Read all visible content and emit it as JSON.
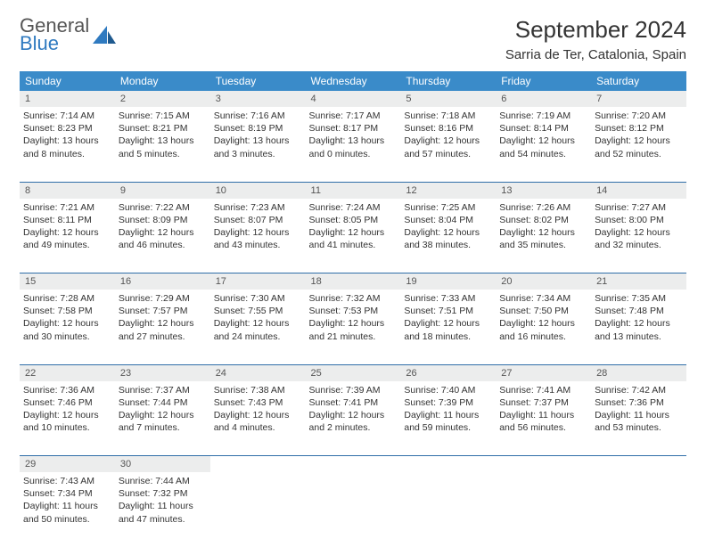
{
  "brand": {
    "word1": "General",
    "word2": "Blue",
    "color_primary": "#2f7ac0",
    "color_text": "#555555"
  },
  "title": "September 2024",
  "location": "Sarria de Ter, Catalonia, Spain",
  "header_bg": "#3a8bc9",
  "header_fg": "#ffffff",
  "daynum_bg": "#eceded",
  "rule_color": "#2f6ea8",
  "weekdays": [
    "Sunday",
    "Monday",
    "Tuesday",
    "Wednesday",
    "Thursday",
    "Friday",
    "Saturday"
  ],
  "weeks": [
    [
      {
        "n": "1",
        "sr": "7:14 AM",
        "ss": "8:23 PM",
        "dl": "13 hours and 8 minutes."
      },
      {
        "n": "2",
        "sr": "7:15 AM",
        "ss": "8:21 PM",
        "dl": "13 hours and 5 minutes."
      },
      {
        "n": "3",
        "sr": "7:16 AM",
        "ss": "8:19 PM",
        "dl": "13 hours and 3 minutes."
      },
      {
        "n": "4",
        "sr": "7:17 AM",
        "ss": "8:17 PM",
        "dl": "13 hours and 0 minutes."
      },
      {
        "n": "5",
        "sr": "7:18 AM",
        "ss": "8:16 PM",
        "dl": "12 hours and 57 minutes."
      },
      {
        "n": "6",
        "sr": "7:19 AM",
        "ss": "8:14 PM",
        "dl": "12 hours and 54 minutes."
      },
      {
        "n": "7",
        "sr": "7:20 AM",
        "ss": "8:12 PM",
        "dl": "12 hours and 52 minutes."
      }
    ],
    [
      {
        "n": "8",
        "sr": "7:21 AM",
        "ss": "8:11 PM",
        "dl": "12 hours and 49 minutes."
      },
      {
        "n": "9",
        "sr": "7:22 AM",
        "ss": "8:09 PM",
        "dl": "12 hours and 46 minutes."
      },
      {
        "n": "10",
        "sr": "7:23 AM",
        "ss": "8:07 PM",
        "dl": "12 hours and 43 minutes."
      },
      {
        "n": "11",
        "sr": "7:24 AM",
        "ss": "8:05 PM",
        "dl": "12 hours and 41 minutes."
      },
      {
        "n": "12",
        "sr": "7:25 AM",
        "ss": "8:04 PM",
        "dl": "12 hours and 38 minutes."
      },
      {
        "n": "13",
        "sr": "7:26 AM",
        "ss": "8:02 PM",
        "dl": "12 hours and 35 minutes."
      },
      {
        "n": "14",
        "sr": "7:27 AM",
        "ss": "8:00 PM",
        "dl": "12 hours and 32 minutes."
      }
    ],
    [
      {
        "n": "15",
        "sr": "7:28 AM",
        "ss": "7:58 PM",
        "dl": "12 hours and 30 minutes."
      },
      {
        "n": "16",
        "sr": "7:29 AM",
        "ss": "7:57 PM",
        "dl": "12 hours and 27 minutes."
      },
      {
        "n": "17",
        "sr": "7:30 AM",
        "ss": "7:55 PM",
        "dl": "12 hours and 24 minutes."
      },
      {
        "n": "18",
        "sr": "7:32 AM",
        "ss": "7:53 PM",
        "dl": "12 hours and 21 minutes."
      },
      {
        "n": "19",
        "sr": "7:33 AM",
        "ss": "7:51 PM",
        "dl": "12 hours and 18 minutes."
      },
      {
        "n": "20",
        "sr": "7:34 AM",
        "ss": "7:50 PM",
        "dl": "12 hours and 16 minutes."
      },
      {
        "n": "21",
        "sr": "7:35 AM",
        "ss": "7:48 PM",
        "dl": "12 hours and 13 minutes."
      }
    ],
    [
      {
        "n": "22",
        "sr": "7:36 AM",
        "ss": "7:46 PM",
        "dl": "12 hours and 10 minutes."
      },
      {
        "n": "23",
        "sr": "7:37 AM",
        "ss": "7:44 PM",
        "dl": "12 hours and 7 minutes."
      },
      {
        "n": "24",
        "sr": "7:38 AM",
        "ss": "7:43 PM",
        "dl": "12 hours and 4 minutes."
      },
      {
        "n": "25",
        "sr": "7:39 AM",
        "ss": "7:41 PM",
        "dl": "12 hours and 2 minutes."
      },
      {
        "n": "26",
        "sr": "7:40 AM",
        "ss": "7:39 PM",
        "dl": "11 hours and 59 minutes."
      },
      {
        "n": "27",
        "sr": "7:41 AM",
        "ss": "7:37 PM",
        "dl": "11 hours and 56 minutes."
      },
      {
        "n": "28",
        "sr": "7:42 AM",
        "ss": "7:36 PM",
        "dl": "11 hours and 53 minutes."
      }
    ],
    [
      {
        "n": "29",
        "sr": "7:43 AM",
        "ss": "7:34 PM",
        "dl": "11 hours and 50 minutes."
      },
      {
        "n": "30",
        "sr": "7:44 AM",
        "ss": "7:32 PM",
        "dl": "11 hours and 47 minutes."
      },
      null,
      null,
      null,
      null,
      null
    ]
  ],
  "labels": {
    "sunrise": "Sunrise:",
    "sunset": "Sunset:",
    "daylight": "Daylight:"
  }
}
